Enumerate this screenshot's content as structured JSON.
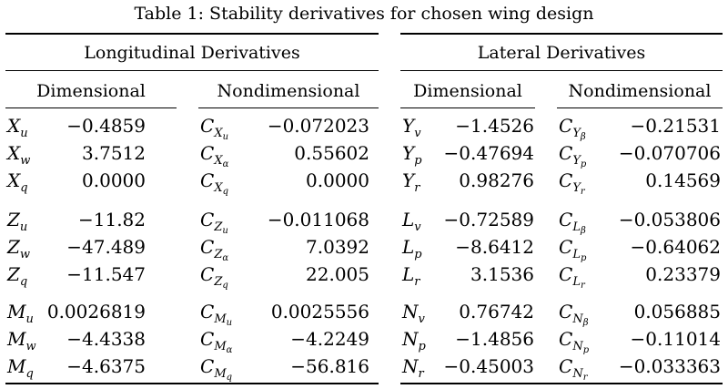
{
  "caption": "Table 1: Stability derivatives for chosen wing design",
  "groups": {
    "longitudinal": "Longitudinal Derivatives",
    "lateral": "Lateral Derivatives"
  },
  "subheaders": {
    "dim": "Dimensional",
    "nondim": "Nondimensional"
  },
  "rows": [
    {
      "a": {
        "base": "X",
        "sub": "u",
        "val": "−0.4859"
      },
      "b": {
        "base": "C",
        "sub": "X",
        "ssub": "u",
        "val": "−0.072023"
      },
      "c": {
        "base": "Y",
        "sub": "v",
        "val": "−1.4526"
      },
      "d": {
        "base": "C",
        "sub": "Y",
        "ssub": "β",
        "val": "−0.21531"
      }
    },
    {
      "a": {
        "base": "X",
        "sub": "w",
        "val": "3.7512"
      },
      "b": {
        "base": "C",
        "sub": "X",
        "ssub": "α",
        "val": "0.55602"
      },
      "c": {
        "base": "Y",
        "sub": "p",
        "val": "−0.47694"
      },
      "d": {
        "base": "C",
        "sub": "Y",
        "ssub": "p",
        "val": "−0.070706"
      }
    },
    {
      "a": {
        "base": "X",
        "sub": "q",
        "val": "0.0000"
      },
      "b": {
        "base": "C",
        "sub": "X",
        "ssub": "q",
        "val": "0.0000"
      },
      "c": {
        "base": "Y",
        "sub": "r",
        "val": "0.98276"
      },
      "d": {
        "base": "C",
        "sub": "Y",
        "ssub": "r",
        "val": "0.14569"
      }
    },
    {
      "a": {
        "base": "Z",
        "sub": "u",
        "val": "−11.82"
      },
      "b": {
        "base": "C",
        "sub": "Z",
        "ssub": "u",
        "val": "−0.011068"
      },
      "c": {
        "base": "L",
        "sub": "v",
        "val": "−0.72589"
      },
      "d": {
        "base": "C",
        "sub": "L",
        "ssub": "β",
        "val": "−0.053806"
      }
    },
    {
      "a": {
        "base": "Z",
        "sub": "w",
        "val": "−47.489"
      },
      "b": {
        "base": "C",
        "sub": "Z",
        "ssub": "α",
        "val": "7.0392"
      },
      "c": {
        "base": "L",
        "sub": "p",
        "val": "−8.6412"
      },
      "d": {
        "base": "C",
        "sub": "L",
        "ssub": "p",
        "val": "−0.64062"
      }
    },
    {
      "a": {
        "base": "Z",
        "sub": "q",
        "val": "−11.547"
      },
      "b": {
        "base": "C",
        "sub": "Z",
        "ssub": "q",
        "val": "22.005"
      },
      "c": {
        "base": "L",
        "sub": "r",
        "val": "3.1536"
      },
      "d": {
        "base": "C",
        "sub": "L",
        "ssub": "r",
        "val": "0.23379"
      }
    },
    {
      "a": {
        "base": "M",
        "sub": "u",
        "val": "0.0026819"
      },
      "b": {
        "base": "C",
        "sub": "M",
        "ssub": "u",
        "val": "0.0025556"
      },
      "c": {
        "base": "N",
        "sub": "v",
        "val": "0.76742"
      },
      "d": {
        "base": "C",
        "sub": "N",
        "ssub": "β",
        "val": "0.056885"
      }
    },
    {
      "a": {
        "base": "M",
        "sub": "w",
        "val": "−4.4338"
      },
      "b": {
        "base": "C",
        "sub": "M",
        "ssub": "α",
        "val": "−4.2249"
      },
      "c": {
        "base": "N",
        "sub": "p",
        "val": "−1.4856"
      },
      "d": {
        "base": "C",
        "sub": "N",
        "ssub": "p",
        "val": "−0.11014"
      }
    },
    {
      "a": {
        "base": "M",
        "sub": "q",
        "val": "−4.6375"
      },
      "b": {
        "base": "C",
        "sub": "M",
        "ssub": "q",
        "val": "−56.816"
      },
      "c": {
        "base": "N",
        "sub": "r",
        "val": "−0.45003"
      },
      "d": {
        "base": "C",
        "sub": "N",
        "ssub": "r",
        "val": "−0.033363"
      }
    }
  ]
}
